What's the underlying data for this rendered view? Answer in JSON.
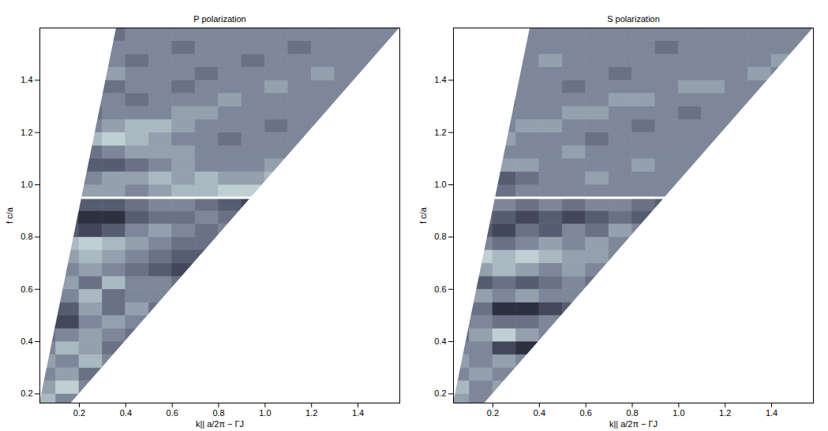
{
  "chart_data": [
    {
      "type": "heatmap",
      "title": "P polarization",
      "x_label": "k|| a/2π − ΓJ",
      "y_label": "f c/a",
      "xlim": [
        0.03,
        1.58
      ],
      "ylim": [
        0.165,
        1.6
      ],
      "xticks": [
        0.2,
        0.4,
        0.6,
        0.8,
        1,
        1.2,
        1.4
      ],
      "yticks": [
        0.2,
        0.4,
        0.6,
        0.8,
        1,
        1.2,
        1.4
      ],
      "zlim": [
        0,
        1
      ],
      "k_step": 0.1,
      "f_step": 0.05,
      "left_edge": {
        "k": [
          0.03,
          0.36
        ],
        "f": [
          0.165,
          1.6
        ]
      },
      "light_line": {
        "k": [
          0.165,
          1.58
        ],
        "f": [
          0.165,
          1.6
        ]
      },
      "bright_line": {
        "f": 0.95,
        "k": [
          0.21,
          0.95
        ]
      },
      "rows": [
        {
          "f": 0.15,
          "k": 0.0,
          "values": [
            0.7,
            0.5
          ]
        },
        {
          "f": 0.2,
          "k": 0.0,
          "values": [
            0.6,
            0.8,
            0.5
          ]
        },
        {
          "f": 0.25,
          "k": 0.0,
          "values": [
            0.5,
            0.6,
            0.4
          ]
        },
        {
          "f": 0.3,
          "k": 0.0,
          "values": [
            0.6,
            0.5,
            0.7,
            0.5
          ]
        },
        {
          "f": 0.35,
          "k": 0.0,
          "values": [
            0.5,
            0.7,
            0.6,
            0.4
          ]
        },
        {
          "f": 0.4,
          "k": 0.0,
          "values": [
            0.4,
            0.5,
            0.6,
            0.5,
            0.4
          ]
        },
        {
          "f": 0.45,
          "k": 0.0,
          "values": [
            0.1,
            0.2,
            0.5,
            0.6,
            0.5
          ]
        },
        {
          "f": 0.5,
          "k": 0.1,
          "values": [
            0.3,
            0.6,
            0.4,
            0.6,
            0.4
          ]
        },
        {
          "f": 0.55,
          "k": 0.1,
          "values": [
            0.5,
            0.7,
            0.4,
            0.5,
            0.5
          ]
        },
        {
          "f": 0.6,
          "k": 0.1,
          "values": [
            0.6,
            0.4,
            0.7,
            0.5,
            0.5,
            0.4
          ]
        },
        {
          "f": 0.65,
          "k": 0.1,
          "values": [
            0.5,
            0.6,
            0.5,
            0.4,
            0.3,
            0.2
          ]
        },
        {
          "f": 0.7,
          "k": 0.1,
          "values": [
            0.6,
            0.7,
            0.6,
            0.5,
            0.4,
            0.3,
            0.3
          ]
        },
        {
          "f": 0.75,
          "k": 0.1,
          "values": [
            0.7,
            0.8,
            0.7,
            0.6,
            0.5,
            0.4,
            0.4
          ]
        },
        {
          "f": 0.8,
          "k": 0.1,
          "values": [
            0.3,
            0.2,
            0.3,
            0.5,
            0.6,
            0.5,
            0.4,
            0.5
          ]
        },
        {
          "f": 0.85,
          "k": 0.1,
          "values": [
            0.2,
            0.1,
            0.1,
            0.3,
            0.4,
            0.4,
            0.5,
            0.4
          ]
        },
        {
          "f": 0.9,
          "k": 0.1,
          "values": [
            0.4,
            0.3,
            0.3,
            0.4,
            0.5,
            0.5,
            0.4,
            0.3,
            0.2
          ]
        },
        {
          "f": 0.95,
          "k": 0.2,
          "values": [
            0.6,
            0.6,
            0.5,
            0.6,
            0.7,
            0.7,
            0.8,
            0.8
          ]
        },
        {
          "f": 1.0,
          "k": 0.2,
          "values": [
            0.5,
            0.6,
            0.6,
            0.7,
            0.6,
            0.7,
            0.6,
            0.6,
            0.7
          ]
        },
        {
          "f": 1.05,
          "k": 0.2,
          "values": [
            0.3,
            0.3,
            0.4,
            0.5,
            0.6,
            0.5,
            0.5,
            0.5,
            0.6
          ]
        },
        {
          "f": 1.1,
          "k": 0.2,
          "values": [
            0.4,
            0.5,
            0.6,
            0.6,
            0.6,
            0.5,
            0.5,
            0.5,
            0.5,
            0.5
          ]
        },
        {
          "f": 1.15,
          "k": 0.2,
          "values": [
            0.7,
            0.8,
            0.7,
            0.6,
            0.5,
            0.5,
            0.4,
            0.5,
            0.5,
            0.5
          ]
        },
        {
          "f": 1.2,
          "k": 0.2,
          "values": [
            0.5,
            0.6,
            0.7,
            0.7,
            0.6,
            0.5,
            0.5,
            0.5,
            0.4,
            0.5,
            0.5
          ]
        },
        {
          "f": 1.25,
          "k": 0.2,
          "values": [
            0.4,
            0.5,
            0.5,
            0.5,
            0.6,
            0.6,
            0.5,
            0.5,
            0.5,
            0.5,
            0.5
          ]
        },
        {
          "f": 1.3,
          "k": 0.2,
          "values": [
            0.5,
            0.5,
            0.4,
            0.5,
            0.5,
            0.5,
            0.6,
            0.5,
            0.5,
            0.5,
            0.5,
            0.5
          ]
        },
        {
          "f": 1.35,
          "k": 0.3,
          "values": [
            0.4,
            0.5,
            0.5,
            0.4,
            0.5,
            0.5,
            0.5,
            0.6,
            0.5,
            0.5,
            0.5
          ]
        },
        {
          "f": 1.4,
          "k": 0.3,
          "values": [
            0.6,
            0.5,
            0.5,
            0.5,
            0.4,
            0.5,
            0.5,
            0.5,
            0.5,
            0.6,
            0.5,
            0.5
          ]
        },
        {
          "f": 1.45,
          "k": 0.3,
          "values": [
            0.5,
            0.4,
            0.5,
            0.5,
            0.5,
            0.5,
            0.4,
            0.5,
            0.5,
            0.5,
            0.5,
            0.5
          ]
        },
        {
          "f": 1.5,
          "k": 0.3,
          "values": [
            0.5,
            0.5,
            0.5,
            0.4,
            0.5,
            0.5,
            0.5,
            0.5,
            0.4,
            0.5,
            0.5,
            0.5,
            0.5
          ]
        },
        {
          "f": 1.55,
          "k": 0.3,
          "values": [
            0.4,
            0.5,
            0.5,
            0.5,
            0.5,
            0.5,
            0.5,
            0.5,
            0.5,
            0.5,
            0.5,
            0.5,
            0.5
          ]
        }
      ]
    },
    {
      "type": "heatmap",
      "title": "S polarization",
      "x_label": "k|| a/2π − ΓJ",
      "y_label": "f c/a",
      "xlim": [
        0.03,
        1.58
      ],
      "ylim": [
        0.165,
        1.6
      ],
      "xticks": [
        0.2,
        0.4,
        0.6,
        0.8,
        1,
        1.2,
        1.4
      ],
      "yticks": [
        0.2,
        0.4,
        0.6,
        0.8,
        1,
        1.2,
        1.4
      ],
      "zlim": [
        0,
        1
      ],
      "k_step": 0.1,
      "f_step": 0.05,
      "left_edge": {
        "k": [
          0.03,
          0.36
        ],
        "f": [
          0.165,
          1.6
        ]
      },
      "light_line": {
        "k": [
          0.165,
          1.58
        ],
        "f": [
          0.165,
          1.6
        ]
      },
      "bright_line": {
        "f": 0.95,
        "k": [
          0.21,
          0.95
        ]
      },
      "rows": [
        {
          "f": 0.15,
          "k": 0.0,
          "values": [
            0.6,
            0.5
          ]
        },
        {
          "f": 0.2,
          "k": 0.0,
          "values": [
            0.7,
            0.5,
            0.6
          ]
        },
        {
          "f": 0.25,
          "k": 0.0,
          "values": [
            0.5,
            0.6,
            0.5
          ]
        },
        {
          "f": 0.3,
          "k": 0.0,
          "values": [
            0.6,
            0.5,
            0.6,
            0.5
          ]
        },
        {
          "f": 0.35,
          "k": 0.0,
          "values": [
            0.5,
            0.5,
            0.2,
            0.1
          ]
        },
        {
          "f": 0.4,
          "k": 0.0,
          "values": [
            0.4,
            0.6,
            0.8,
            0.6,
            0.5
          ]
        },
        {
          "f": 0.45,
          "k": 0.0,
          "values": [
            0.5,
            0.5,
            0.4,
            0.4,
            0.5
          ]
        },
        {
          "f": 0.5,
          "k": 0.1,
          "values": [
            0.4,
            0.1,
            0.1,
            0.2,
            0.3
          ]
        },
        {
          "f": 0.55,
          "k": 0.1,
          "values": [
            0.6,
            0.5,
            0.6,
            0.5,
            0.5
          ]
        },
        {
          "f": 0.6,
          "k": 0.1,
          "values": [
            0.3,
            0.4,
            0.3,
            0.4,
            0.5,
            0.4
          ]
        },
        {
          "f": 0.65,
          "k": 0.1,
          "values": [
            0.6,
            0.7,
            0.6,
            0.5,
            0.6,
            0.5
          ]
        },
        {
          "f": 0.7,
          "k": 0.1,
          "values": [
            0.8,
            0.7,
            0.8,
            0.7,
            0.6,
            0.6,
            0.5
          ]
        },
        {
          "f": 0.75,
          "k": 0.1,
          "values": [
            0.5,
            0.4,
            0.5,
            0.6,
            0.5,
            0.6,
            0.5
          ]
        },
        {
          "f": 0.8,
          "k": 0.1,
          "values": [
            0.3,
            0.2,
            0.4,
            0.3,
            0.5,
            0.4,
            0.6,
            0.5
          ]
        },
        {
          "f": 0.85,
          "k": 0.1,
          "values": [
            0.4,
            0.3,
            0.2,
            0.3,
            0.2,
            0.3,
            0.4,
            0.3
          ]
        },
        {
          "f": 0.9,
          "k": 0.1,
          "values": [
            0.5,
            0.5,
            0.4,
            0.5,
            0.4,
            0.5,
            0.5,
            0.4,
            0.3
          ]
        },
        {
          "f": 0.95,
          "k": 0.2,
          "values": [
            0.4,
            0.5,
            0.5,
            0.5,
            0.5,
            0.5,
            0.5,
            0.5
          ]
        },
        {
          "f": 1.0,
          "k": 0.2,
          "values": [
            0.3,
            0.4,
            0.5,
            0.5,
            0.6,
            0.5,
            0.5,
            0.5,
            0.5
          ]
        },
        {
          "f": 1.05,
          "k": 0.2,
          "values": [
            0.6,
            0.6,
            0.5,
            0.5,
            0.5,
            0.5,
            0.6,
            0.5,
            0.5
          ]
        },
        {
          "f": 1.1,
          "k": 0.2,
          "values": [
            0.5,
            0.5,
            0.5,
            0.6,
            0.5,
            0.5,
            0.5,
            0.5,
            0.5,
            0.5
          ]
        },
        {
          "f": 1.15,
          "k": 0.2,
          "values": [
            0.6,
            0.5,
            0.5,
            0.5,
            0.4,
            0.5,
            0.5,
            0.5,
            0.5,
            0.5
          ]
        },
        {
          "f": 1.2,
          "k": 0.2,
          "values": [
            0.5,
            0.6,
            0.6,
            0.5,
            0.5,
            0.5,
            0.4,
            0.5,
            0.5,
            0.5,
            0.5
          ]
        },
        {
          "f": 1.25,
          "k": 0.2,
          "values": [
            0.5,
            0.5,
            0.5,
            0.6,
            0.6,
            0.5,
            0.5,
            0.5,
            0.4,
            0.5,
            0.5
          ]
        },
        {
          "f": 1.3,
          "k": 0.2,
          "values": [
            0.4,
            0.5,
            0.5,
            0.5,
            0.5,
            0.6,
            0.6,
            0.5,
            0.5,
            0.5,
            0.5,
            0.5
          ]
        },
        {
          "f": 1.35,
          "k": 0.3,
          "values": [
            0.5,
            0.5,
            0.4,
            0.5,
            0.5,
            0.5,
            0.5,
            0.6,
            0.6,
            0.5,
            0.5
          ]
        },
        {
          "f": 1.4,
          "k": 0.3,
          "values": [
            0.5,
            0.5,
            0.5,
            0.5,
            0.4,
            0.5,
            0.5,
            0.5,
            0.5,
            0.5,
            0.6,
            0.5
          ]
        },
        {
          "f": 1.45,
          "k": 0.3,
          "values": [
            0.5,
            0.6,
            0.5,
            0.5,
            0.5,
            0.5,
            0.5,
            0.5,
            0.5,
            0.5,
            0.5,
            0.6
          ]
        },
        {
          "f": 1.5,
          "k": 0.3,
          "values": [
            0.5,
            0.5,
            0.5,
            0.5,
            0.5,
            0.5,
            0.4,
            0.5,
            0.5,
            0.5,
            0.5,
            0.5,
            0.5
          ]
        },
        {
          "f": 1.55,
          "k": 0.3,
          "values": [
            0.5,
            0.5,
            0.5,
            0.5,
            0.5,
            0.5,
            0.5,
            0.5,
            0.5,
            0.5,
            0.5,
            0.5,
            0.5
          ]
        }
      ]
    }
  ]
}
